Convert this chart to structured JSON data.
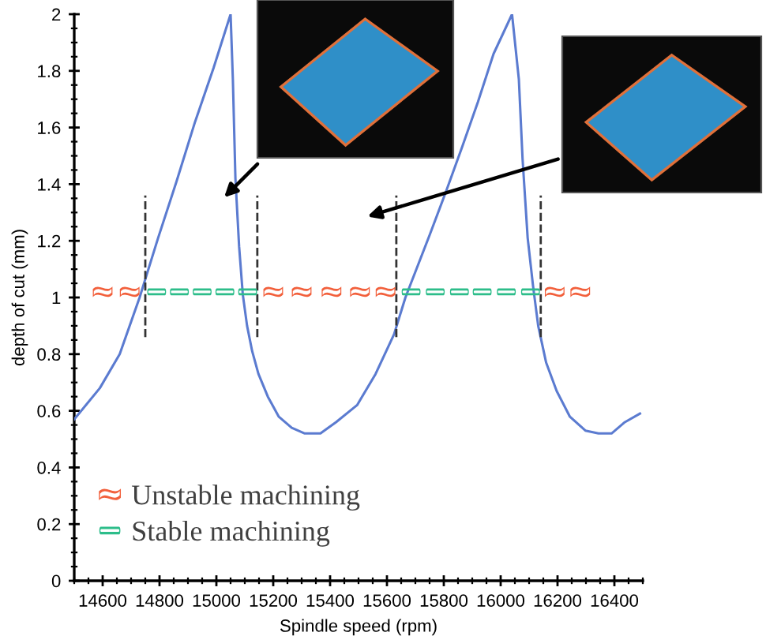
{
  "chart_data": {
    "type": "line",
    "xlabel": "Spindle speed (rpm)",
    "ylabel": "depth of cut (mm)",
    "xlim": [
      14500,
      16500
    ],
    "xticks": [
      14600,
      14800,
      15000,
      15200,
      15400,
      15600,
      15800,
      16000,
      16200,
      16400
    ],
    "ylim": [
      0,
      2
    ],
    "yticks": [
      0,
      0.2,
      0.4,
      0.6,
      0.8,
      1,
      1.2,
      1.4,
      1.6,
      1.8,
      2
    ],
    "grid": false,
    "legend": "bottom left",
    "series": [
      {
        "color": "#5b7bd0",
        "x": [
          14500,
          14590,
          14660,
          14730,
          14795,
          14860,
          14925,
          14990,
          15050,
          15058,
          15067,
          15080,
          15093,
          15108,
          15126,
          15148,
          15181,
          15219,
          15265,
          15311,
          15366,
          15421,
          15495,
          15560,
          15625,
          15665,
          15750,
          15810,
          15864,
          15920,
          15975,
          16040,
          16064,
          16077,
          16095,
          16114,
          16132,
          16160,
          16197,
          16243,
          16298,
          16344,
          16390,
          16437,
          16490
        ],
        "values": [
          0.57,
          0.68,
          0.8,
          1.0,
          1.21,
          1.41,
          1.62,
          1.81,
          2.0,
          1.77,
          1.42,
          1.18,
          1.01,
          0.9,
          0.81,
          0.73,
          0.65,
          0.58,
          0.54,
          0.52,
          0.52,
          0.56,
          0.62,
          0.73,
          0.87,
          1.0,
          1.22,
          1.38,
          1.53,
          1.69,
          1.86,
          2.0,
          1.77,
          1.49,
          1.21,
          1.04,
          0.9,
          0.77,
          0.67,
          0.58,
          0.53,
          0.52,
          0.52,
          0.56,
          0.59
        ]
      },
      {
        "type": "scatter",
        "name": "Unstable machining",
        "color": "#f2603c",
        "x": [
          14600,
          14695,
          15200,
          15300,
          15405,
          15505,
          15595,
          16190,
          16280
        ],
        "values": [
          1.02,
          1.02,
          1.02,
          1.02,
          1.02,
          1.02,
          1.02,
          1.02,
          1.02
        ]
      },
      {
        "type": "scatter",
        "name": "Stable machining",
        "color": "#2dbd8a",
        "x": [
          14790,
          14870,
          14950,
          15030,
          15110,
          15685,
          15770,
          15855,
          15935,
          16020,
          16105
        ],
        "values": [
          1.02,
          1.02,
          1.02,
          1.02,
          1.02,
          1.02,
          1.02,
          1.02,
          1.02,
          1.02,
          1.02
        ]
      },
      {
        "type": "line",
        "color": "#333333",
        "line_style": "dashed",
        "x": [
          14750,
          14750
        ],
        "values": [
          0.86,
          1.36
        ]
      },
      {
        "type": "line",
        "color": "#333333",
        "line_style": "dashed",
        "x": [
          15144,
          15144
        ],
        "values": [
          0.86,
          1.36
        ]
      },
      {
        "type": "line",
        "color": "#333333",
        "line_style": "dashed",
        "x": [
          15633,
          15633
        ],
        "values": [
          0.86,
          1.36
        ]
      },
      {
        "type": "line",
        "color": "#333333",
        "line_style": "dashed",
        "x": [
          16141,
          16141
        ],
        "values": [
          0.86,
          1.36
        ]
      }
    ]
  }
}
